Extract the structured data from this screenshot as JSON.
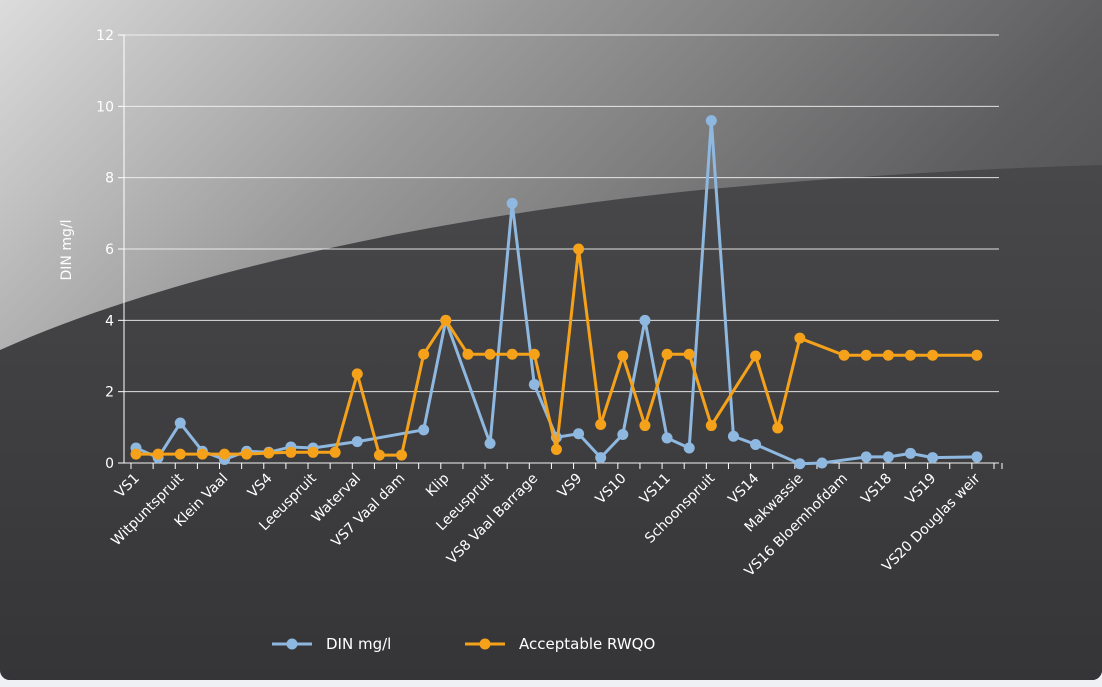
{
  "chart_data": {
    "type": "line",
    "title": "",
    "ylabel": "DIN mg/l",
    "xlabel": "",
    "ylim": [
      0,
      12
    ],
    "yticks": [
      0,
      2,
      4,
      6,
      8,
      10,
      12
    ],
    "grid": true,
    "legend_position": "bottom",
    "categories": [
      "VS1",
      "Witpuntspruit",
      "Klein Vaal",
      "VS4",
      "Leeuspruit",
      "Waterval",
      "VS7 Vaal dam",
      "Klip",
      "Leeuspruit",
      "VS8 Vaal Barrage",
      "VS9",
      "VS10",
      "VS11",
      "Schoonspruit",
      "VS14",
      "Makwassie",
      "VS16 Bloemhofdam",
      "VS18",
      "VS19",
      "VS20 Douglas weir"
    ],
    "category_positions": [
      0,
      2,
      4,
      6,
      8,
      10,
      12,
      14,
      16,
      18,
      20,
      22,
      24,
      26,
      28,
      30,
      32,
      34,
      36,
      38
    ],
    "series": [
      {
        "name": "DIN mg/l",
        "color": "#8fb8e0",
        "points": [
          [
            0,
            0.42
          ],
          [
            1,
            0.15
          ],
          [
            2,
            1.12
          ],
          [
            3,
            0.33
          ],
          [
            4,
            0.1
          ],
          [
            5,
            0.33
          ],
          [
            6,
            0.3
          ],
          [
            7,
            0.45
          ],
          [
            8,
            0.42
          ],
          [
            10,
            0.6
          ],
          [
            13,
            0.93
          ],
          [
            14,
            4.0
          ],
          [
            16,
            0.55
          ],
          [
            17,
            7.28
          ],
          [
            18,
            2.2
          ],
          [
            19,
            0.72
          ],
          [
            20,
            0.82
          ],
          [
            21,
            0.15
          ],
          [
            22,
            0.8
          ],
          [
            23,
            4.0
          ],
          [
            24,
            0.7
          ],
          [
            25,
            0.42
          ],
          [
            26,
            9.6
          ],
          [
            27,
            0.75
          ],
          [
            28,
            0.52
          ],
          [
            30,
            -0.02
          ],
          [
            31,
            0.0
          ],
          [
            33,
            0.17
          ],
          [
            34,
            0.17
          ],
          [
            35,
            0.27
          ],
          [
            36,
            0.15
          ],
          [
            38,
            0.17
          ]
        ]
      },
      {
        "name": "Acceptable RWQO",
        "color": "#f5a21a",
        "points": [
          [
            0,
            0.25
          ],
          [
            1,
            0.25
          ],
          [
            2,
            0.25
          ],
          [
            3,
            0.25
          ],
          [
            4,
            0.25
          ],
          [
            5,
            0.25
          ],
          [
            6,
            0.28
          ],
          [
            7,
            0.3
          ],
          [
            8,
            0.3
          ],
          [
            9,
            0.3
          ],
          [
            10,
            2.5
          ],
          [
            11,
            0.22
          ],
          [
            12,
            0.22
          ],
          [
            13,
            3.05
          ],
          [
            14,
            4.0
          ],
          [
            15,
            3.05
          ],
          [
            16,
            3.05
          ],
          [
            17,
            3.05
          ],
          [
            18,
            3.05
          ],
          [
            19,
            0.38
          ],
          [
            20,
            6.0
          ],
          [
            21,
            1.08
          ],
          [
            22,
            3.0
          ],
          [
            23,
            1.05
          ],
          [
            24,
            3.05
          ],
          [
            25,
            3.05
          ],
          [
            26,
            1.05
          ],
          [
            28,
            3.0
          ],
          [
            29,
            0.98
          ],
          [
            30,
            3.5
          ],
          [
            32,
            3.02
          ],
          [
            33,
            3.02
          ],
          [
            34,
            3.02
          ],
          [
            35,
            3.02
          ],
          [
            36,
            3.02
          ],
          [
            38,
            3.02
          ]
        ]
      }
    ]
  }
}
